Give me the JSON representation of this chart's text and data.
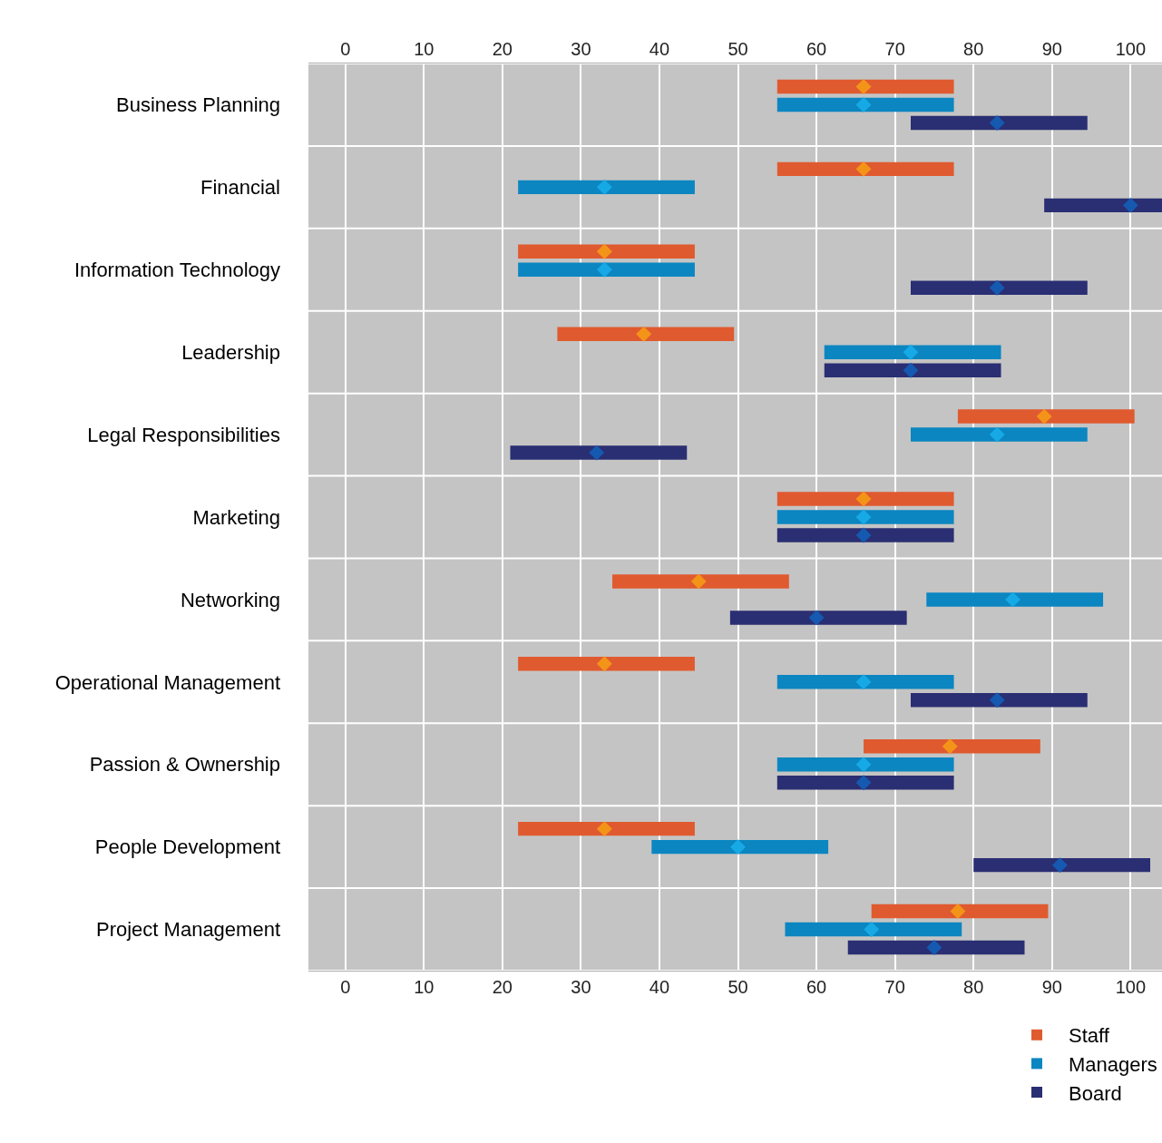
{
  "chart_data": {
    "type": "bar",
    "orientation": "horizontal",
    "categories": [
      "Business Planning",
      "Financial",
      "Information Technology",
      "Leadership",
      "Legal Responsibilities",
      "Marketing",
      "Networking",
      "Operational Management",
      "Passion & Ownership",
      "People Development",
      "Project Management"
    ],
    "series": [
      {
        "name": "Staff",
        "color": "#e05a2f",
        "base": [
          55,
          55,
          22,
          27,
          78,
          55,
          34,
          22,
          66,
          22,
          67
        ],
        "values": [
          22.5,
          22.5,
          22.5,
          22.5,
          22.5,
          22.5,
          22.5,
          22.5,
          22.5,
          22.5,
          22.5
        ]
      },
      {
        "name": "Managers",
        "color": "#0b86c1",
        "base": [
          55,
          22,
          22,
          61,
          72,
          55,
          74,
          55,
          55,
          39,
          56
        ],
        "values": [
          22.5,
          22.5,
          22.5,
          22.5,
          22.5,
          22.5,
          22.5,
          22.5,
          22.5,
          22.5,
          22.5
        ]
      },
      {
        "name": "Board",
        "color": "#2a2e72",
        "base": [
          72,
          89,
          72,
          61,
          21,
          55,
          49,
          72,
          55,
          80,
          64
        ],
        "values": [
          22.5,
          15,
          22.5,
          22.5,
          22.5,
          22.5,
          22.5,
          22.5,
          22.5,
          22.5,
          22.5
        ]
      },
      {
        "type": "scatter",
        "marker": "diamond",
        "color": "#f39419",
        "values": [
          66,
          66,
          33,
          38,
          89,
          66,
          45,
          33,
          77,
          33,
          78
        ]
      },
      {
        "type": "scatter",
        "marker": "diamond",
        "color": "#16a9e6",
        "values": [
          66,
          33,
          33,
          72,
          83,
          66,
          85,
          66,
          66,
          50,
          67
        ]
      },
      {
        "type": "scatter",
        "marker": "diamond",
        "color": "#1559b0",
        "values": [
          83,
          100,
          83,
          72,
          32,
          66,
          60,
          83,
          66,
          91,
          75
        ]
      }
    ],
    "xlim": [
      -4.7,
      104
    ],
    "xticks": [
      0,
      10,
      20,
      30,
      40,
      50,
      60,
      70,
      80,
      90,
      100
    ],
    "x2lim": [
      -4.7,
      104
    ],
    "x2ticks": [
      0,
      10,
      20,
      30,
      40,
      50,
      60,
      70,
      80,
      90,
      100
    ],
    "grid": true,
    "legend": "bottom right"
  }
}
